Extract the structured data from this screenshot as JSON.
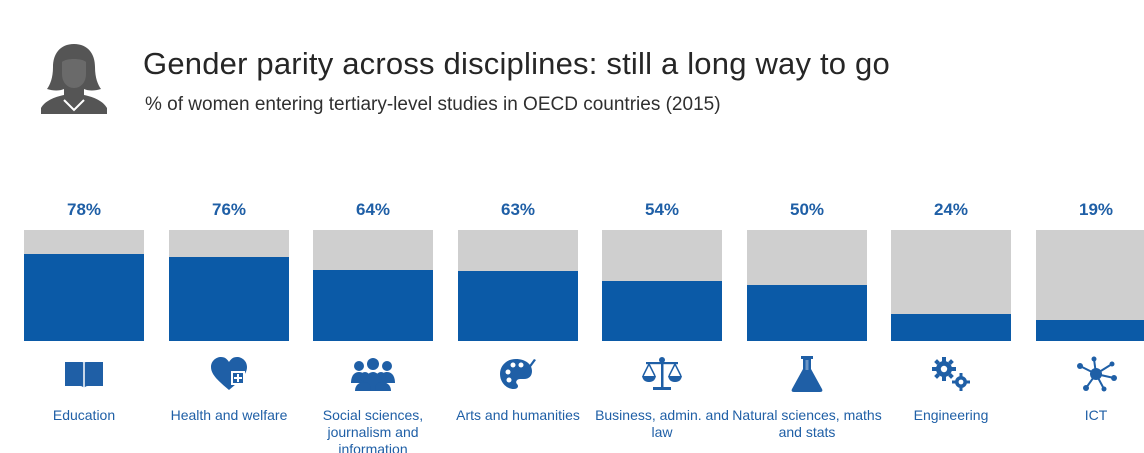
{
  "header": {
    "title": "Gender parity across disciplines: still a long way to go",
    "subtitle": "% of women entering tertiary-level studies in OECD countries (2015)",
    "person_icon": "woman-icon"
  },
  "colors": {
    "fill": "#0b5aa7",
    "track": "#cfcfcf",
    "label": "#1f5fa6",
    "title": "#262626"
  },
  "chart_data": {
    "type": "bar",
    "title": "Gender parity across disciplines: still a long way to go",
    "subtitle": "% of women entering tertiary-level studies in OECD countries (2015)",
    "xlabel": "",
    "ylabel": "",
    "ylim": [
      0,
      100
    ],
    "grid": false,
    "categories": [
      "Education",
      "Health and welfare",
      "Social sciences, journalism and information",
      "Arts and humanities",
      "Business, admin. and law",
      "Natural sciences, maths and stats",
      "Engineering",
      "ICT"
    ],
    "values": [
      78,
      76,
      64,
      63,
      54,
      50,
      24,
      19
    ],
    "value_labels": [
      "78%",
      "76%",
      "64%",
      "63%",
      "54%",
      "50%",
      "24%",
      "19%"
    ],
    "icons": [
      "book-icon",
      "heart-plus-icon",
      "people-group-icon",
      "palette-icon",
      "scales-icon",
      "flask-icon",
      "gears-icon",
      "network-icon"
    ]
  }
}
